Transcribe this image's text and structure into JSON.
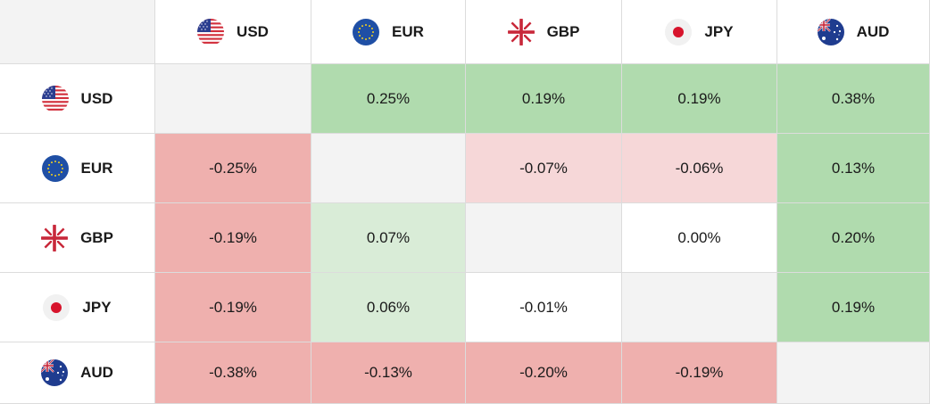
{
  "currencies": [
    {
      "code": "USD",
      "flag": "us-flag-icon"
    },
    {
      "code": "EUR",
      "flag": "eu-flag-icon"
    },
    {
      "code": "GBP",
      "flag": "gb-flag-icon"
    },
    {
      "code": "JPY",
      "flag": "jp-flag-icon"
    },
    {
      "code": "AUD",
      "flag": "au-flag-icon"
    }
  ],
  "matrix": [
    [
      null,
      "0.25%",
      "0.19%",
      "0.19%",
      "0.38%"
    ],
    [
      "-0.25%",
      null,
      "-0.07%",
      "-0.06%",
      "0.13%"
    ],
    [
      "-0.19%",
      "0.07%",
      null,
      "0.00%",
      "0.20%"
    ],
    [
      "-0.19%",
      "0.06%",
      "-0.01%",
      null,
      "0.19%"
    ],
    [
      "-0.38%",
      "-0.13%",
      "-0.20%",
      "-0.19%",
      null
    ]
  ],
  "colors": {
    "strong_positive": "#b0dbae",
    "weak_positive": "#d9ecd7",
    "strong_negative": "#efb0ae",
    "weak_negative": "#f6d7d8",
    "neutral": "#ffffff",
    "diagonal": "#f3f3f3"
  }
}
